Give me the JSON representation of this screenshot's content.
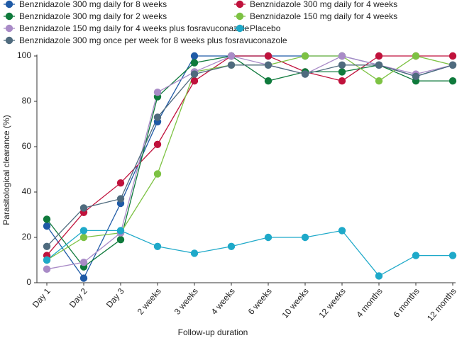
{
  "chart_data": {
    "type": "line",
    "x_label": "Follow-up duration",
    "y_label": "Parasitological clearance (%)",
    "categories": [
      "Day 1",
      "Day 2",
      "Day 3",
      "2 weeks",
      "3 weeks",
      "4 weeks",
      "6 weeks",
      "10 weeks",
      "12 weeks",
      "4 months",
      "6 months",
      "12 months"
    ],
    "ylim": [
      0,
      100
    ],
    "yticks": [
      0,
      20,
      40,
      60,
      80,
      100
    ],
    "grid": false,
    "series": [
      {
        "name": "Benznidazole 300 mg daily for 8 weeks",
        "color": "#1f5aa6",
        "values": [
          25,
          2,
          35,
          71,
          100,
          100,
          100,
          100,
          100,
          96,
          91,
          96
        ]
      },
      {
        "name": "Benznidazole 300 mg daily for 4 weeks",
        "color": "#c0123c",
        "values": [
          12,
          31,
          44,
          61,
          89,
          100,
          100,
          93,
          89,
          100,
          100,
          100
        ]
      },
      {
        "name": "Benznidazole 300 mg daily for 2 weeks",
        "color": "#0f7a3c",
        "values": [
          28,
          7,
          19,
          82,
          97,
          100,
          89,
          93,
          93,
          96,
          89,
          89
        ]
      },
      {
        "name": "Benznidazole 150 mg daily for 4 weeks",
        "color": "#7dc243",
        "values": [
          10,
          20,
          22,
          48,
          93,
          96,
          96,
          100,
          100,
          89,
          100,
          96
        ]
      },
      {
        "name": "Benznidazole 150 mg daily for 4 weeks plus fosravuconazole",
        "color": "#a98bc7",
        "values": [
          6,
          9,
          22,
          84,
          93,
          100,
          96,
          92,
          100,
          96,
          92,
          96
        ]
      },
      {
        "name": "Placebo",
        "color": "#1ea9c9",
        "values": [
          10,
          23,
          23,
          16,
          13,
          16,
          20,
          20,
          23,
          3,
          12,
          12
        ]
      },
      {
        "name": "Benznidazole 300 mg once per week for 8 weeks plus fosravuconazole",
        "color": "#4f6b7e",
        "values": [
          16,
          33,
          37,
          73,
          92,
          96,
          96,
          92,
          96,
          96,
          91,
          96
        ]
      }
    ]
  }
}
